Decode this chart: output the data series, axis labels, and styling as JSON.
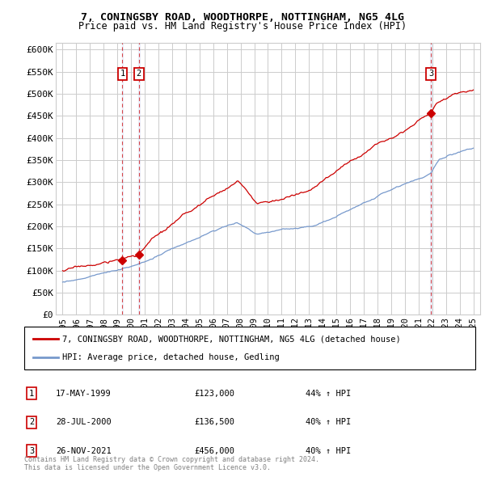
{
  "title": "7, CONINGSBY ROAD, WOODTHORPE, NOTTINGHAM, NG5 4LG",
  "subtitle": "Price paid vs. HM Land Registry's House Price Index (HPI)",
  "ylabel_vals": [
    0,
    50000,
    100000,
    150000,
    200000,
    250000,
    300000,
    350000,
    400000,
    450000,
    500000,
    550000,
    600000
  ],
  "ylabel_labels": [
    "£0",
    "£50K",
    "£100K",
    "£150K",
    "£200K",
    "£250K",
    "£300K",
    "£350K",
    "£400K",
    "£450K",
    "£500K",
    "£550K",
    "£600K"
  ],
  "xlim": [
    1994.5,
    2025.5
  ],
  "ylim": [
    0,
    615000
  ],
  "transactions": [
    {
      "label": "1",
      "year": 1999.37,
      "price": 123000,
      "date": "17-MAY-1999",
      "pct": "44%",
      "display_price": "£123,000"
    },
    {
      "label": "2",
      "year": 2000.57,
      "price": 136500,
      "date": "28-JUL-2000",
      "pct": "40%",
      "display_price": "£136,500"
    },
    {
      "label": "3",
      "year": 2021.9,
      "price": 456000,
      "date": "26-NOV-2021",
      "pct": "40%",
      "display_price": "£456,000"
    }
  ],
  "red_line_color": "#cc0000",
  "blue_line_color": "#7799cc",
  "dashed_line_color": "#cc0000",
  "grid_color": "#cccccc",
  "background_color": "#ffffff",
  "legend_label_red": "7, CONINGSBY ROAD, WOODTHORPE, NOTTINGHAM, NG5 4LG (detached house)",
  "legend_label_blue": "HPI: Average price, detached house, Gedling",
  "footer_line1": "Contains HM Land Registry data © Crown copyright and database right 2024.",
  "footer_line2": "This data is licensed under the Open Government Licence v3.0."
}
